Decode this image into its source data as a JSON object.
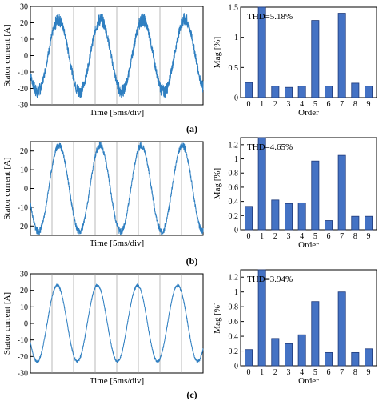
{
  "colors": {
    "wave": "#2f7fc1",
    "bar": "#4472c4",
    "bar_edge": "#1f3a7a",
    "frame": "#000000",
    "grid": "#9a9a9a"
  },
  "chart_data": [
    {
      "type": "line",
      "panel": "(a)",
      "ylabel": "Stator current [A]",
      "xlabel": "Time [5ms/div]",
      "ylim": [
        -30,
        30
      ],
      "yticks": [
        -30,
        -20,
        -10,
        0,
        10,
        20,
        30
      ],
      "x_divisions": 8,
      "grid": true,
      "series": [
        {
          "amplitude": 22,
          "cycles": 4.1,
          "phase_deg": 210,
          "noise": "high"
        }
      ]
    },
    {
      "type": "bar",
      "panel": "(a)",
      "ylabel": "Mag [%]",
      "xlabel": "Order",
      "ylim": [
        0,
        1.5
      ],
      "yticks": [
        "0",
        "0.5",
        "1",
        "1.5"
      ],
      "categories": [
        "0",
        "1",
        "2",
        "3",
        "4",
        "5",
        "6",
        "7",
        "8",
        "9"
      ],
      "values": [
        0.25,
        1.5,
        0.19,
        0.17,
        0.19,
        1.28,
        0.19,
        1.4,
        0.24,
        0.19
      ],
      "annotation": "THD=5.18%"
    },
    {
      "type": "line",
      "panel": "(b)",
      "ylabel": "Stator current [A]",
      "xlabel": "Time [5ms/div]",
      "ylim": [
        -25,
        25
      ],
      "yticks": [
        -20,
        -10,
        0,
        10,
        20
      ],
      "x_divisions": 8,
      "grid": true,
      "series": [
        {
          "amplitude": 23,
          "cycles": 4.2,
          "phase_deg": 200,
          "noise": "medium"
        }
      ]
    },
    {
      "type": "bar",
      "panel": "(b)",
      "ylabel": "Mag [%]",
      "xlabel": "Order",
      "ylim": [
        0,
        1.3
      ],
      "yticks": [
        "0",
        "0.2",
        "0.4",
        "0.6",
        "0.8",
        "1",
        "1.2"
      ],
      "categories": [
        "0",
        "1",
        "2",
        "3",
        "4",
        "5",
        "6",
        "7",
        "8",
        "9"
      ],
      "values": [
        0.33,
        1.3,
        0.42,
        0.37,
        0.38,
        0.97,
        0.13,
        1.05,
        0.19,
        0.19
      ],
      "annotation": "THD=4.65%"
    },
    {
      "type": "line",
      "panel": "(c)",
      "ylabel": "Stator current [A]",
      "xlabel": "Time [5ms/div]",
      "ylim": [
        -30,
        30
      ],
      "yticks": [
        -30,
        -20,
        -10,
        0,
        10,
        20,
        30
      ],
      "x_divisions": 8,
      "grid": true,
      "series": [
        {
          "amplitude": 23,
          "cycles": 4.3,
          "phase_deg": 210,
          "noise": "low"
        }
      ]
    },
    {
      "type": "bar",
      "panel": "(c)",
      "ylabel": "Mag [%]",
      "xlabel": "Order",
      "ylim": [
        0,
        1.3
      ],
      "yticks": [
        "0",
        "0.2",
        "0.4",
        "0.6",
        "0.8",
        "1",
        "1.2"
      ],
      "categories": [
        "0",
        "1",
        "2",
        "3",
        "4",
        "5",
        "6",
        "7",
        "8",
        "9"
      ],
      "values": [
        0.22,
        1.3,
        0.37,
        0.3,
        0.42,
        0.87,
        0.18,
        1.0,
        0.18,
        0.23
      ],
      "annotation": "THD=3.94%"
    }
  ]
}
